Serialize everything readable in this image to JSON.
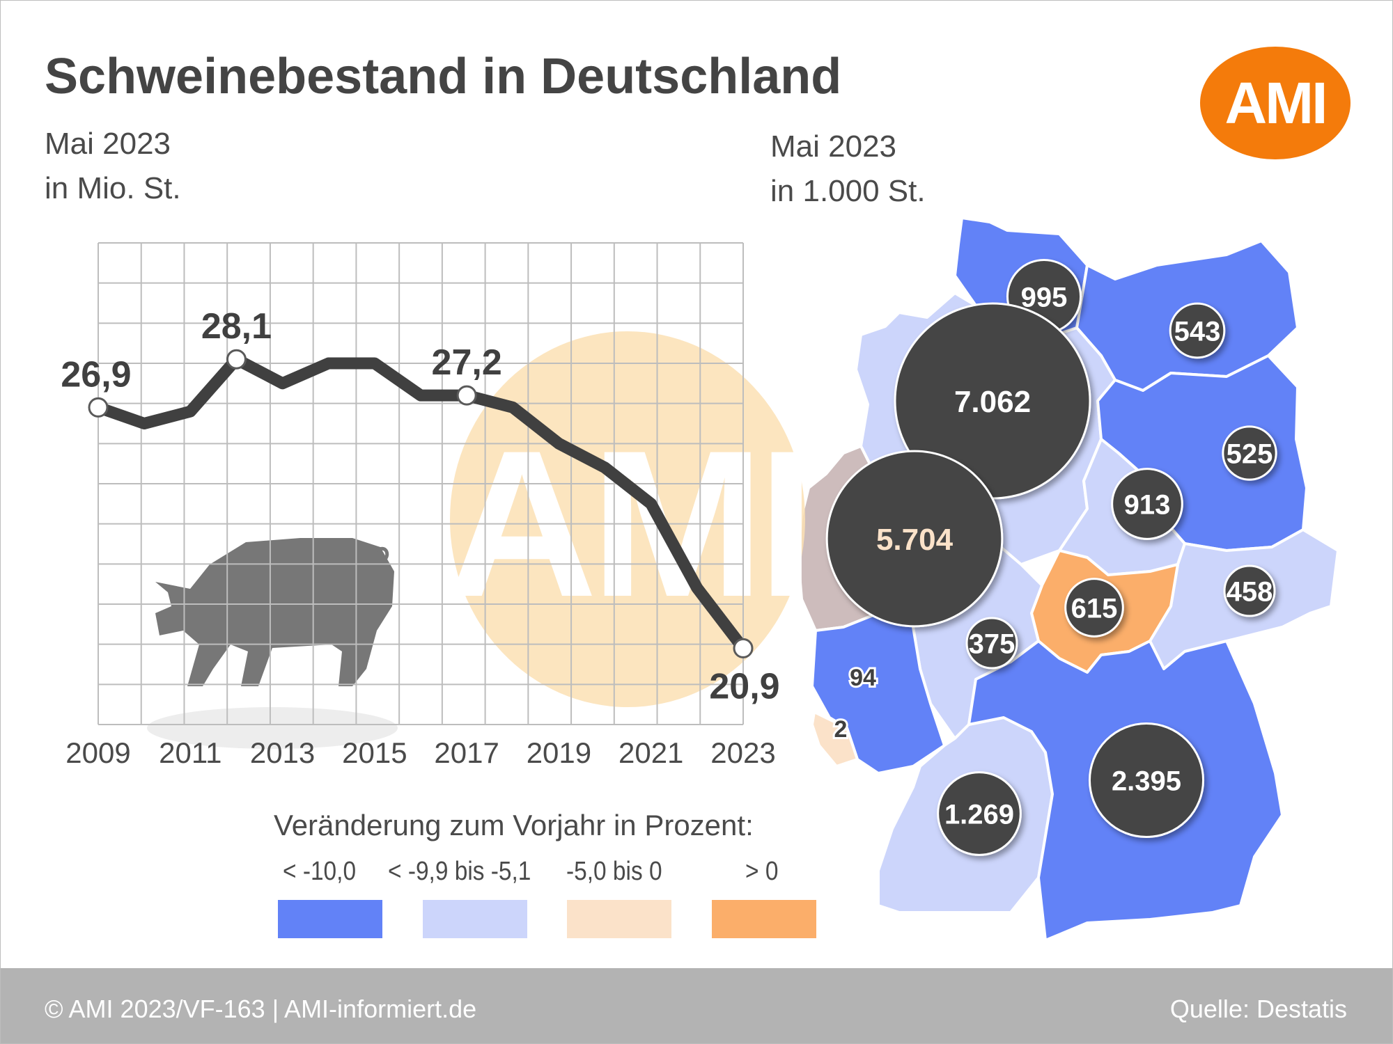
{
  "title": "Schweinebestand in Deutschland",
  "logo_text": "AMI",
  "watermark_text": "AMI",
  "left_subtitle": [
    "Mai 2023",
    "in Mio. St."
  ],
  "right_subtitle": [
    "Mai 2023",
    "in 1.000 St."
  ],
  "chart_data": [
    {
      "type": "line",
      "title": "",
      "unit": "in Mio. St.",
      "x": [
        2009,
        2010,
        2011,
        2012,
        2013,
        2014,
        2015,
        2016,
        2017,
        2018,
        2019,
        2020,
        2021,
        2022,
        2023
      ],
      "y": [
        26.9,
        26.5,
        26.8,
        28.1,
        27.5,
        28.0,
        28.0,
        27.2,
        27.2,
        26.9,
        26.0,
        25.4,
        24.5,
        22.4,
        20.9
      ],
      "xticks": [
        "2009",
        "2011",
        "2013",
        "2015",
        "2017",
        "2019",
        "2021",
        "2023"
      ],
      "labeled_points": [
        {
          "x": 2009,
          "label": "26,9"
        },
        {
          "x": 2012,
          "label": "28,1"
        },
        {
          "x": 2017,
          "label": "27,2"
        },
        {
          "x": 2023,
          "label": "20,9"
        }
      ],
      "xlim": [
        2009,
        2023
      ],
      "ylim": [
        19,
        31
      ],
      "grid": true,
      "line_color": "#404040"
    },
    {
      "type": "map",
      "unit": "in 1.000 St.",
      "regions": [
        {
          "value": 995,
          "label": "995",
          "change_class": 1
        },
        {
          "value": 543,
          "label": "543",
          "change_class": 1
        },
        {
          "value": 7062,
          "label": "7.062",
          "change_class": 2
        },
        {
          "value": 525,
          "label": "525",
          "change_class": 1
        },
        {
          "value": 913,
          "label": "913",
          "change_class": 2
        },
        {
          "value": 5704,
          "label": "5.704",
          "change_class": 3
        },
        {
          "value": 615,
          "label": "615",
          "change_class": 4
        },
        {
          "value": 458,
          "label": "458",
          "change_class": 2
        },
        {
          "value": 375,
          "label": "375",
          "change_class": 2
        },
        {
          "value": 94,
          "label": "94",
          "change_class": 1
        },
        {
          "value": 2,
          "label": "2",
          "change_class": 3
        },
        {
          "value": 2395,
          "label": "2.395",
          "change_class": 1
        },
        {
          "value": 1269,
          "label": "1.269",
          "change_class": 2
        }
      ]
    }
  ],
  "legend": {
    "title": "Veränderung zum Vorjahr in Prozent:",
    "items": [
      {
        "label": "< -10,0",
        "color": "#6282f7"
      },
      {
        "label": "< -9,9 bis -5,1",
        "color": "#ccd5fb"
      },
      {
        "label": "-5,0 bis 0",
        "color": "#fbe2c9"
      },
      {
        "label": "> 0",
        "color": "#fbae6a"
      }
    ]
  },
  "footer": {
    "left": "© AMI 2023/VF-163 | AMI-informiert.de",
    "right": "Quelle: Destatis"
  },
  "colors": {
    "bubble": "#454545",
    "bubble_text": "#ffffff",
    "bubble_highlight_text": "#fbe2c9",
    "watermark": "#fbe0b4",
    "footer": "#b3b3b3"
  }
}
